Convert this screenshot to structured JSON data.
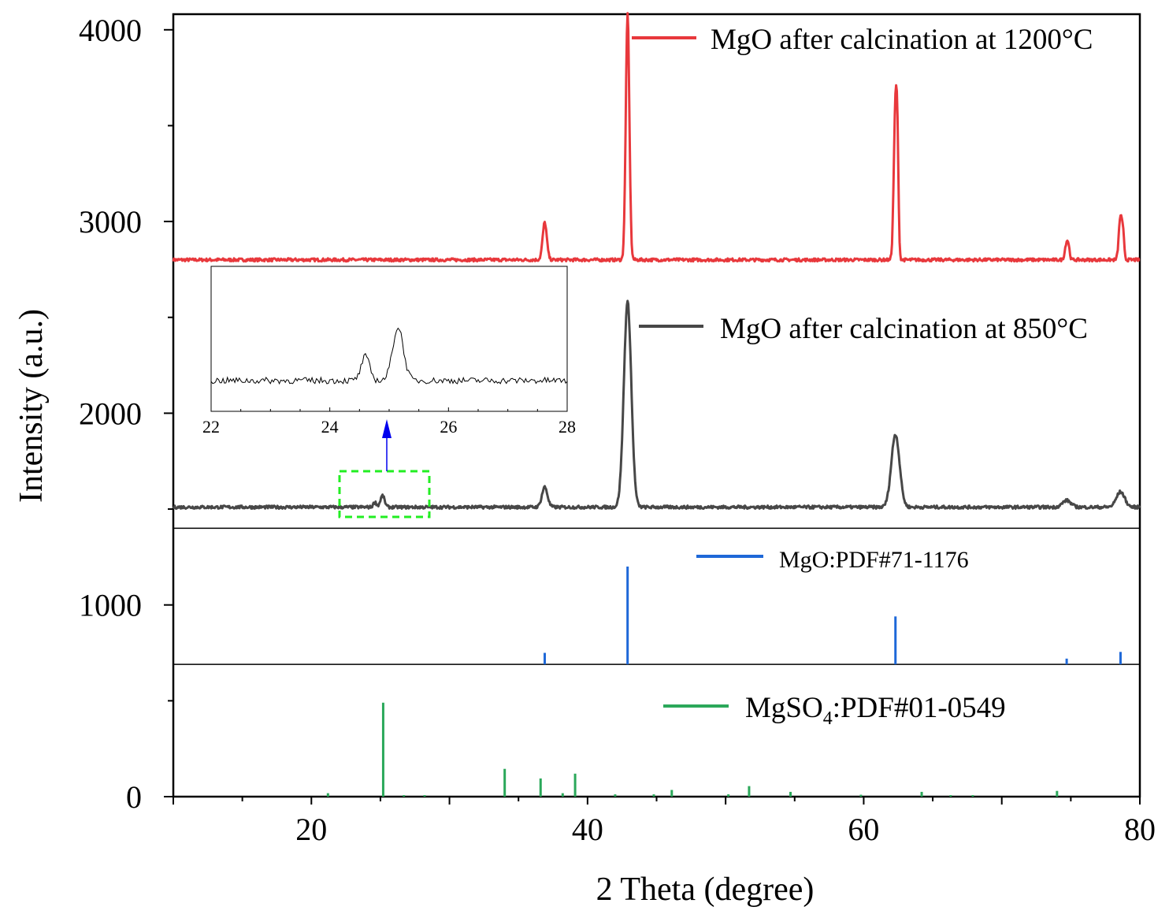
{
  "chart_data": {
    "type": "line",
    "xlabel": "2 Theta (degree)",
    "ylabel": "Intensity (a.u.)",
    "xlim": [
      10,
      80
    ],
    "ylim": [
      0,
      4080
    ],
    "x_ticks": [
      20,
      40,
      60,
      80
    ],
    "y_ticks": [
      0,
      1000,
      2000,
      3000,
      4000
    ],
    "legend": {
      "mgo_1200": "MgO after calcination at 1200°C",
      "mgo_850": "MgO after calcination at 850°C",
      "mgo_pdf": "MgO:PDF#71-1176",
      "mgso4_pdf_prefix": "MgSO",
      "mgso4_pdf_sub": "4",
      "mgso4_pdf_suffix": ":PDF#01-0549"
    },
    "series": [
      {
        "name": "MgO after calcination at 1200°C",
        "color": "#e8383c",
        "baseline": 2800,
        "peaks": [
          {
            "x": 36.9,
            "y": 2995,
            "w": 0.15
          },
          {
            "x": 42.9,
            "y": 4080,
            "w": 0.13
          },
          {
            "x": 62.3,
            "y": 3600,
            "w": 0.12
          },
          {
            "x": 62.45,
            "y": 3180,
            "w": 0.08
          },
          {
            "x": 74.7,
            "y": 2890,
            "w": 0.12
          },
          {
            "x": 74.85,
            "y": 2840,
            "w": 0.08
          },
          {
            "x": 78.6,
            "y": 3030,
            "w": 0.12
          },
          {
            "x": 78.8,
            "y": 2900,
            "w": 0.08
          }
        ]
      },
      {
        "name": "MgO after calcination at 850°C",
        "color": "#474747",
        "baseline": 1510,
        "peaks": [
          {
            "x": 24.6,
            "y": 1535,
            "w": 0.12
          },
          {
            "x": 25.15,
            "y": 1570,
            "w": 0.15
          },
          {
            "x": 36.9,
            "y": 1615,
            "w": 0.2
          },
          {
            "x": 42.9,
            "y": 2580,
            "w": 0.27
          },
          {
            "x": 62.3,
            "y": 1890,
            "w": 0.3
          },
          {
            "x": 74.7,
            "y": 1545,
            "w": 0.3
          },
          {
            "x": 78.6,
            "y": 1590,
            "w": 0.3
          }
        ]
      }
    ],
    "reference_sticks": [
      {
        "name": "MgO:PDF#71-1176",
        "color": "#1e68d8",
        "base": 690,
        "sticks": [
          {
            "x": 36.9,
            "y": 750
          },
          {
            "x": 42.9,
            "y": 1200
          },
          {
            "x": 62.3,
            "y": 940
          },
          {
            "x": 74.7,
            "y": 720
          },
          {
            "x": 78.6,
            "y": 755
          }
        ]
      },
      {
        "name": "MgSO4:PDF#01-0549",
        "color": "#2ba85a",
        "base": 0,
        "sticks": [
          {
            "x": 21.2,
            "y": 18
          },
          {
            "x": 25.2,
            "y": 490
          },
          {
            "x": 26.7,
            "y": 8
          },
          {
            "x": 28.2,
            "y": 8
          },
          {
            "x": 34.0,
            "y": 145
          },
          {
            "x": 36.6,
            "y": 95
          },
          {
            "x": 38.2,
            "y": 18
          },
          {
            "x": 39.1,
            "y": 120
          },
          {
            "x": 42.0,
            "y": 12
          },
          {
            "x": 44.8,
            "y": 12
          },
          {
            "x": 46.1,
            "y": 35
          },
          {
            "x": 50.2,
            "y": 12
          },
          {
            "x": 51.7,
            "y": 55
          },
          {
            "x": 54.7,
            "y": 25
          },
          {
            "x": 59.8,
            "y": 10
          },
          {
            "x": 64.2,
            "y": 25
          },
          {
            "x": 66.3,
            "y": 8
          },
          {
            "x": 67.9,
            "y": 8
          },
          {
            "x": 74.0,
            "y": 30
          }
        ]
      }
    ],
    "dividers": [
      1400,
      690
    ],
    "inset": {
      "xlim": [
        22,
        28
      ],
      "x_ticks": [
        22,
        24,
        26,
        28
      ],
      "source_range": [
        22.5,
        28.3
      ],
      "peaks": [
        {
          "x": 24.6,
          "y": 0.45,
          "w": 0.07
        },
        {
          "x": 25.15,
          "y": 1.0,
          "w": 0.09
        }
      ],
      "arrow_color": "#0000ee",
      "highlight_color": "#22ee22"
    }
  }
}
